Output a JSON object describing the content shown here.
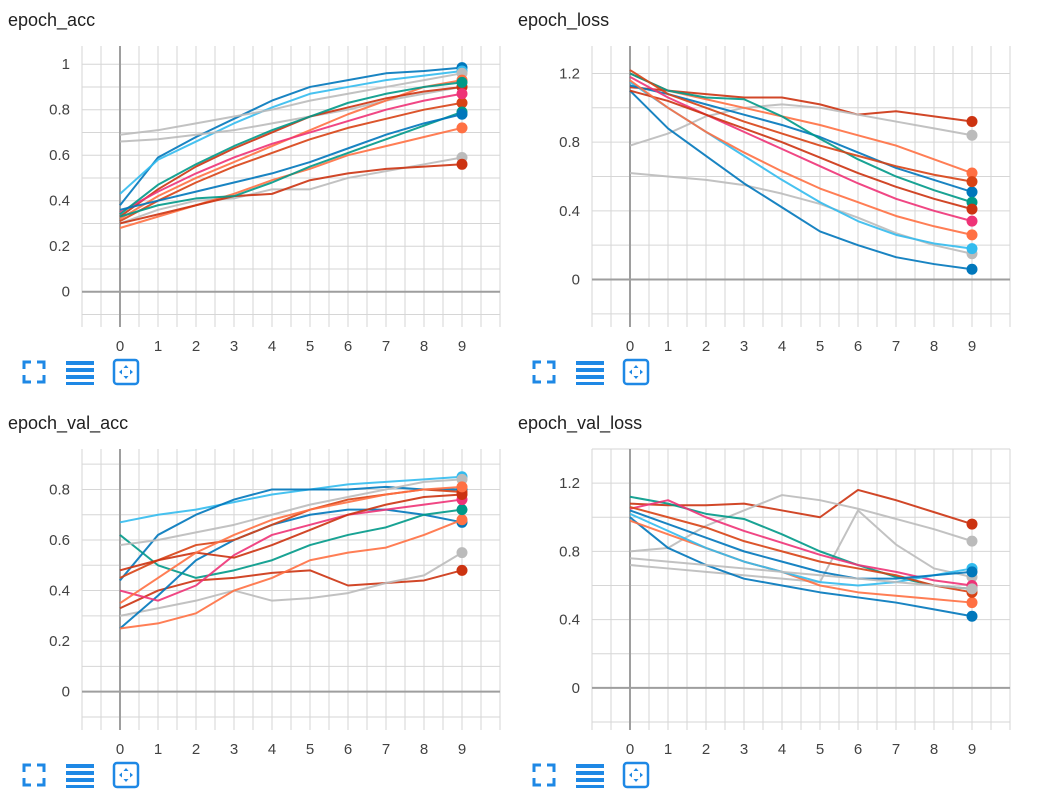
{
  "colors": {
    "grid": "#d6d6d6",
    "axis_zero": "#9e9e9e",
    "tick_text": "#424242",
    "toolbar_icon": "#1e88e5",
    "series_palette": [
      "#ff7043",
      "#0077bb",
      "#bbbbbb",
      "#cc3311",
      "#33bbee",
      "#ee3377",
      "#009988",
      "#d84315"
    ]
  },
  "toolbar": {
    "icons": [
      "fullscreen-icon",
      "data-list-icon",
      "fit-domain-icon"
    ]
  },
  "chart_data": [
    {
      "type": "line",
      "title": "epoch_acc",
      "x": [
        0,
        1,
        2,
        3,
        4,
        5,
        6,
        7,
        8,
        9
      ],
      "xlim": [
        -1,
        10
      ],
      "ylim": [
        -0.12,
        1.08
      ],
      "yticks": [
        0,
        0.2,
        0.4,
        0.6,
        0.8,
        1
      ],
      "ytick_labels": [
        "0",
        "0.2",
        "0.4",
        "0.6",
        "0.8",
        "1"
      ],
      "grid": true,
      "series": [
        {
          "color": "#0077bb",
          "values": [
            0.38,
            0.59,
            0.68,
            0.76,
            0.84,
            0.9,
            0.93,
            0.96,
            0.97,
            0.985
          ]
        },
        {
          "color": "#33bbee",
          "values": [
            0.43,
            0.58,
            0.66,
            0.74,
            0.81,
            0.87,
            0.9,
            0.93,
            0.95,
            0.97
          ]
        },
        {
          "color": "#bbbbbb",
          "values": [
            0.69,
            0.71,
            0.74,
            0.77,
            0.8,
            0.84,
            0.87,
            0.9,
            0.93,
            0.96
          ]
        },
        {
          "color": "#bbbbbb",
          "values": [
            0.66,
            0.67,
            0.69,
            0.71,
            0.74,
            0.77,
            0.8,
            0.84,
            0.87,
            0.9
          ]
        },
        {
          "color": "#bbbbbb",
          "values": [
            0.3,
            0.36,
            0.4,
            0.41,
            0.45,
            0.45,
            0.5,
            0.53,
            0.56,
            0.59
          ]
        },
        {
          "color": "#ff7043",
          "values": [
            0.32,
            0.42,
            0.5,
            0.57,
            0.64,
            0.71,
            0.78,
            0.84,
            0.9,
            0.93
          ]
        },
        {
          "color": "#ff7043",
          "values": [
            0.28,
            0.33,
            0.38,
            0.43,
            0.49,
            0.54,
            0.6,
            0.64,
            0.68,
            0.72
          ]
        },
        {
          "color": "#cc3311",
          "values": [
            0.3,
            0.34,
            0.38,
            0.42,
            0.43,
            0.49,
            0.52,
            0.54,
            0.55,
            0.56
          ]
        },
        {
          "color": "#cc3311",
          "values": [
            0.33,
            0.45,
            0.55,
            0.63,
            0.7,
            0.77,
            0.81,
            0.85,
            0.88,
            0.9
          ]
        },
        {
          "color": "#d84315",
          "values": [
            0.31,
            0.4,
            0.48,
            0.55,
            0.61,
            0.67,
            0.72,
            0.76,
            0.8,
            0.83
          ]
        },
        {
          "color": "#ee3377",
          "values": [
            0.35,
            0.44,
            0.52,
            0.59,
            0.65,
            0.7,
            0.75,
            0.8,
            0.84,
            0.87
          ]
        },
        {
          "color": "#009988",
          "values": [
            0.33,
            0.38,
            0.41,
            0.42,
            0.48,
            0.55,
            0.61,
            0.67,
            0.73,
            0.79
          ]
        },
        {
          "color": "#009988",
          "values": [
            0.34,
            0.47,
            0.56,
            0.64,
            0.71,
            0.77,
            0.83,
            0.87,
            0.9,
            0.92
          ]
        },
        {
          "color": "#0077bb",
          "values": [
            0.36,
            0.4,
            0.44,
            0.48,
            0.52,
            0.57,
            0.63,
            0.69,
            0.74,
            0.78
          ]
        }
      ]
    },
    {
      "type": "line",
      "title": "epoch_loss",
      "x": [
        0,
        1,
        2,
        3,
        4,
        5,
        6,
        7,
        8,
        9
      ],
      "xlim": [
        -1,
        10
      ],
      "ylim": [
        -0.23,
        1.36
      ],
      "yticks": [
        0,
        0.4,
        0.8,
        1.2
      ],
      "ytick_labels": [
        "0",
        "0.4",
        "0.8",
        "1.2"
      ],
      "grid": true,
      "series": [
        {
          "color": "#cc3311",
          "values": [
            1.12,
            1.1,
            1.08,
            1.06,
            1.06,
            1.02,
            0.96,
            0.98,
            0.95,
            0.92
          ]
        },
        {
          "color": "#bbbbbb",
          "values": [
            0.78,
            0.85,
            0.95,
            1.0,
            1.02,
            1.0,
            0.96,
            0.92,
            0.88,
            0.84
          ]
        },
        {
          "color": "#bbbbbb",
          "values": [
            0.62,
            0.6,
            0.58,
            0.55,
            0.5,
            0.44,
            0.36,
            0.27,
            0.2,
            0.15
          ]
        },
        {
          "color": "#ff7043",
          "values": [
            1.2,
            1.1,
            1.05,
            1.0,
            0.95,
            0.9,
            0.84,
            0.78,
            0.7,
            0.62
          ]
        },
        {
          "color": "#0077bb",
          "values": [
            1.1,
            0.88,
            0.72,
            0.56,
            0.42,
            0.28,
            0.2,
            0.13,
            0.09,
            0.06
          ]
        },
        {
          "color": "#33bbee",
          "values": [
            1.15,
            1.0,
            0.86,
            0.72,
            0.58,
            0.45,
            0.34,
            0.26,
            0.21,
            0.18
          ]
        },
        {
          "color": "#0077bb",
          "values": [
            1.13,
            1.08,
            1.02,
            0.96,
            0.9,
            0.83,
            0.74,
            0.65,
            0.58,
            0.51
          ]
        },
        {
          "color": "#009988",
          "values": [
            1.2,
            1.1,
            1.06,
            1.05,
            0.95,
            0.82,
            0.7,
            0.6,
            0.52,
            0.45
          ]
        },
        {
          "color": "#ee3377",
          "values": [
            1.18,
            1.06,
            0.96,
            0.86,
            0.76,
            0.66,
            0.56,
            0.47,
            0.4,
            0.34
          ]
        },
        {
          "color": "#d84315",
          "values": [
            1.22,
            1.08,
            1.0,
            0.92,
            0.85,
            0.78,
            0.72,
            0.66,
            0.61,
            0.57
          ]
        },
        {
          "color": "#cc3311",
          "values": [
            1.1,
            1.04,
            0.96,
            0.88,
            0.8,
            0.71,
            0.62,
            0.54,
            0.47,
            0.41
          ]
        },
        {
          "color": "#ff7043",
          "values": [
            1.16,
            1.0,
            0.86,
            0.74,
            0.63,
            0.53,
            0.45,
            0.37,
            0.31,
            0.26
          ]
        }
      ]
    },
    {
      "type": "line",
      "title": "epoch_val_acc",
      "x": [
        0,
        1,
        2,
        3,
        4,
        5,
        6,
        7,
        8,
        9
      ],
      "xlim": [
        -1,
        10
      ],
      "ylim": [
        -0.12,
        0.96
      ],
      "yticks": [
        0,
        0.2,
        0.4,
        0.6,
        0.8
      ],
      "ytick_labels": [
        "0",
        "0.2",
        "0.4",
        "0.6",
        "0.8"
      ],
      "grid": true,
      "series": [
        {
          "color": "#cc3311",
          "values": [
            0.33,
            0.4,
            0.44,
            0.45,
            0.47,
            0.48,
            0.42,
            0.43,
            0.44,
            0.48
          ]
        },
        {
          "color": "#bbbbbb",
          "values": [
            0.3,
            0.33,
            0.36,
            0.4,
            0.36,
            0.37,
            0.39,
            0.43,
            0.46,
            0.55
          ]
        },
        {
          "color": "#33bbee",
          "values": [
            0.67,
            0.7,
            0.72,
            0.75,
            0.78,
            0.8,
            0.82,
            0.83,
            0.84,
            0.85
          ]
        },
        {
          "color": "#0077bb",
          "values": [
            0.44,
            0.62,
            0.7,
            0.76,
            0.8,
            0.8,
            0.8,
            0.81,
            0.8,
            0.8
          ]
        },
        {
          "color": "#0077bb",
          "values": [
            0.25,
            0.38,
            0.52,
            0.6,
            0.66,
            0.7,
            0.72,
            0.72,
            0.7,
            0.67
          ]
        },
        {
          "color": "#ff7043",
          "values": [
            0.25,
            0.27,
            0.31,
            0.4,
            0.45,
            0.52,
            0.55,
            0.57,
            0.62,
            0.68
          ]
        },
        {
          "color": "#009988",
          "values": [
            0.62,
            0.5,
            0.45,
            0.48,
            0.52,
            0.58,
            0.62,
            0.65,
            0.7,
            0.72
          ]
        },
        {
          "color": "#ee3377",
          "values": [
            0.4,
            0.36,
            0.42,
            0.54,
            0.62,
            0.66,
            0.7,
            0.72,
            0.74,
            0.76
          ]
        },
        {
          "color": "#d84315",
          "values": [
            0.45,
            0.52,
            0.58,
            0.6,
            0.66,
            0.72,
            0.76,
            0.78,
            0.8,
            0.79
          ]
        },
        {
          "color": "#cc3311",
          "values": [
            0.48,
            0.52,
            0.55,
            0.53,
            0.58,
            0.64,
            0.7,
            0.74,
            0.77,
            0.78
          ]
        },
        {
          "color": "#bbbbbb",
          "values": [
            0.58,
            0.6,
            0.63,
            0.66,
            0.7,
            0.74,
            0.77,
            0.8,
            0.83,
            0.84
          ]
        },
        {
          "color": "#ff7043",
          "values": [
            0.35,
            0.45,
            0.55,
            0.62,
            0.68,
            0.72,
            0.75,
            0.78,
            0.8,
            0.81
          ]
        }
      ]
    },
    {
      "type": "line",
      "title": "epoch_val_loss",
      "x": [
        0,
        1,
        2,
        3,
        4,
        5,
        6,
        7,
        8,
        9
      ],
      "xlim": [
        -1,
        10
      ],
      "ylim": [
        -0.2,
        1.4
      ],
      "yticks": [
        0,
        0.4,
        0.8,
        1.2
      ],
      "ytick_labels": [
        "0",
        "0.4",
        "0.8",
        "1.2"
      ],
      "grid": true,
      "series": [
        {
          "color": "#cc3311",
          "values": [
            1.08,
            1.07,
            1.07,
            1.08,
            1.04,
            1.0,
            1.16,
            1.1,
            1.03,
            0.96
          ]
        },
        {
          "color": "#bbbbbb",
          "values": [
            0.8,
            0.82,
            0.95,
            1.04,
            1.13,
            1.1,
            1.05,
            0.99,
            0.93,
            0.86
          ]
        },
        {
          "color": "#bbbbbb",
          "values": [
            0.72,
            0.7,
            0.68,
            0.66,
            0.64,
            0.62,
            1.04,
            0.84,
            0.7,
            0.65
          ]
        },
        {
          "color": "#0077bb",
          "values": [
            1.0,
            0.82,
            0.72,
            0.64,
            0.6,
            0.56,
            0.53,
            0.5,
            0.46,
            0.42
          ]
        },
        {
          "color": "#009988",
          "values": [
            1.12,
            1.08,
            1.02,
            0.99,
            0.9,
            0.8,
            0.72,
            0.65,
            0.6,
            0.58
          ]
        },
        {
          "color": "#ee3377",
          "values": [
            1.05,
            1.1,
            1.0,
            0.92,
            0.85,
            0.78,
            0.72,
            0.68,
            0.63,
            0.6
          ]
        },
        {
          "color": "#ff7043",
          "values": [
            0.98,
            0.9,
            0.82,
            0.74,
            0.68,
            0.6,
            0.56,
            0.54,
            0.52,
            0.5
          ]
        },
        {
          "color": "#33bbee",
          "values": [
            1.02,
            0.92,
            0.82,
            0.74,
            0.68,
            0.62,
            0.6,
            0.62,
            0.66,
            0.7
          ]
        },
        {
          "color": "#d84315",
          "values": [
            1.06,
            1.0,
            0.94,
            0.86,
            0.8,
            0.74,
            0.7,
            0.66,
            0.6,
            0.56
          ]
        },
        {
          "color": "#0077bb",
          "values": [
            1.04,
            0.96,
            0.88,
            0.8,
            0.74,
            0.68,
            0.64,
            0.64,
            0.66,
            0.68
          ]
        },
        {
          "color": "#bbbbbb",
          "values": [
            0.76,
            0.74,
            0.72,
            0.7,
            0.68,
            0.66,
            0.64,
            0.62,
            0.6,
            0.58
          ]
        }
      ]
    }
  ]
}
